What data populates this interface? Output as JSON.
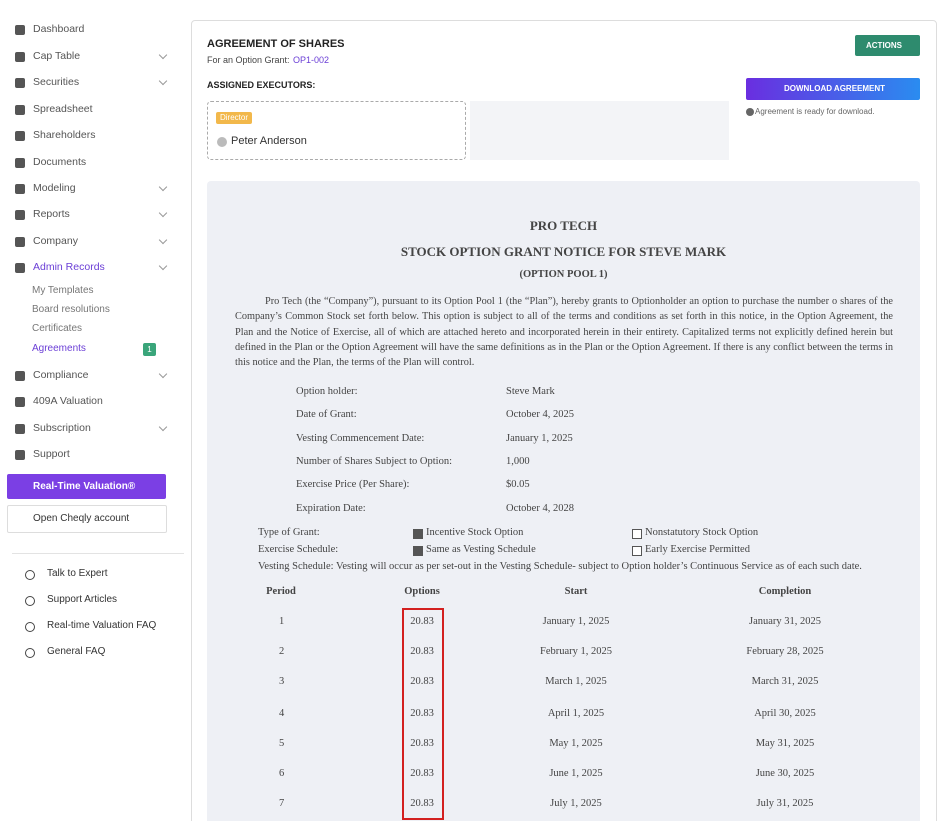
{
  "sidebar": {
    "nav_top": [
      {
        "label": "Dashboard",
        "chevron": false
      },
      {
        "label": "Cap Table",
        "chevron": true
      },
      {
        "label": "Securities",
        "chevron": true
      },
      {
        "label": "Spreadsheet",
        "chevron": false
      },
      {
        "label": "Shareholders",
        "chevron": false
      },
      {
        "label": "Documents",
        "chevron": false
      },
      {
        "label": "Modeling",
        "chevron": true
      },
      {
        "label": "Reports",
        "chevron": true
      },
      {
        "label": "Company",
        "chevron": true
      },
      {
        "label": "Admin Records",
        "chevron": true,
        "active": true
      }
    ],
    "submenu": [
      {
        "label": "My Templates"
      },
      {
        "label": "Board resolutions"
      },
      {
        "label": "Certificates"
      },
      {
        "label": "Agreements",
        "badge": "1",
        "active": true
      }
    ],
    "nav_bottom": [
      {
        "label": "Compliance",
        "chevron": true
      },
      {
        "label": "409A Valuation",
        "chevron": false
      },
      {
        "label": "Subscription",
        "chevron": true
      },
      {
        "label": "Support",
        "chevron": false
      }
    ],
    "valuation_button": "Real-Time Valuation®",
    "account_button": "Open Cheqly account",
    "help": [
      "Talk to Expert",
      "Support Articles",
      "Real-time Valuation FAQ",
      "General FAQ"
    ]
  },
  "header": {
    "title": "AGREEMENT OF SHARES",
    "subtitle": "For an Option Grant:",
    "grant_id": "OP1-002",
    "actions_button": "ACTIONS",
    "executors_label": "ASSIGNED EXECUTORS:",
    "executor": {
      "role": "Director",
      "name": "Peter Anderson"
    },
    "download_button": "DOWNLOAD AGREEMENT",
    "download_note": "Agreement is ready for download."
  },
  "document": {
    "company": "PRO TECH",
    "title": "STOCK OPTION GRANT NOTICE FOR STEVE MARK",
    "pool": "(OPTION POOL 1)",
    "paragraph": "Pro Tech (the “Company”), pursuant to its Option Pool 1 (the “Plan”), hereby grants to Optionholder an option to purchase the number o shares of the Company’s Common Stock set forth below. This option is subject to all of the terms and conditions as set forth in this notice, in the Option Agreement, the Plan and the Notice of Exercise, all of which are attached hereto and incorporated herein in their entirety. Capitalized terms not explicitly defined herein but defined in the Plan or the Option Agreement will have the same definitions as in the Plan or the Option Agreement. If there is any conflict between the terms in this notice and the Plan, the terms of the Plan will control.",
    "fields": [
      [
        "Option holder:",
        "Steve Mark"
      ],
      [
        "Date of Grant:",
        "October 4, 2025"
      ],
      [
        "Vesting Commencement Date:",
        "January 1, 2025"
      ],
      [
        "Number of Shares Subject to Option:",
        "1,000"
      ],
      [
        "Exercise Price (Per Share):",
        "$0.05"
      ],
      [
        "Expiration Date:",
        "October 4, 2028"
      ]
    ],
    "grant_rows": [
      {
        "label": "Type of Grant:",
        "options": [
          {
            "text": "Incentive Stock Option",
            "checked": true
          },
          {
            "text": "Nonstatutory Stock Option",
            "checked": false
          }
        ]
      },
      {
        "label": "Exercise Schedule:",
        "options": [
          {
            "text": "Same as Vesting Schedule",
            "checked": true
          },
          {
            "text": "Early Exercise Permitted",
            "checked": false
          }
        ]
      }
    ],
    "vesting_text": "Vesting Schedule: Vesting will occur as per set-out in the Vesting Schedule- subject to Option holder’s Continuous Service as of each such date.",
    "table": {
      "headers": [
        "Period",
        "Options",
        "Start",
        "Completion"
      ],
      "rows": [
        [
          "1",
          "20.83",
          "January 1, 2025",
          "January 31, 2025"
        ],
        [
          "2",
          "20.83",
          "February 1, 2025",
          "February 28, 2025"
        ],
        [
          "3",
          "20.83",
          "March 1, 2025",
          "March 31, 2025"
        ],
        [
          "4",
          "20.83",
          "April 1, 2025",
          "April 30, 2025"
        ],
        [
          "5",
          "20.83",
          "May 1, 2025",
          "May 31, 2025"
        ],
        [
          "6",
          "20.83",
          "June 1, 2025",
          "June 30, 2025"
        ],
        [
          "7",
          "20.83",
          "July 1, 2025",
          "July 31, 2025"
        ]
      ]
    }
  }
}
